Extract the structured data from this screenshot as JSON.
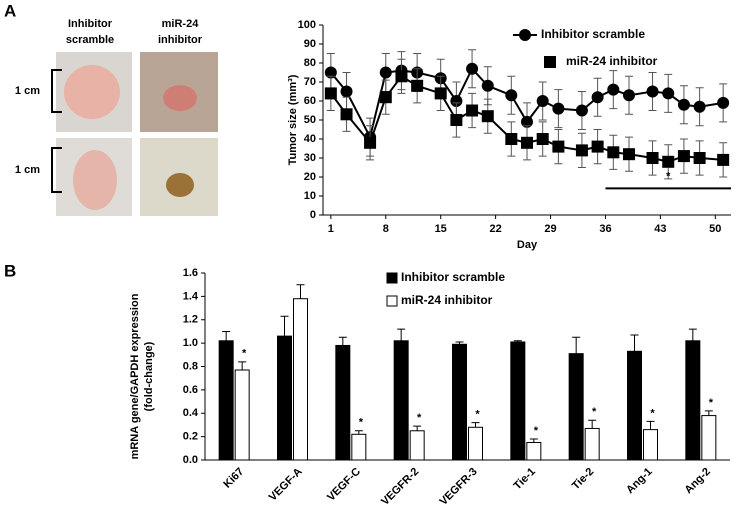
{
  "panels": {
    "a": "A",
    "b": "B"
  },
  "photos": {
    "col1": [
      "Inhibitor",
      "scramble"
    ],
    "col2": [
      "miR-24",
      "inhibitor"
    ],
    "scale1": "1 cm",
    "scale2": "1 cm"
  },
  "chart_data": [
    {
      "type": "line",
      "xlabel": "Day",
      "ylabel": "Tumor size (mm³)",
      "x": [
        1,
        3,
        6,
        8,
        10,
        12,
        15,
        17,
        19,
        21,
        24,
        26,
        28,
        30,
        33,
        35,
        37,
        39,
        42,
        44,
        46,
        48,
        51
      ],
      "series": [
        {
          "name": "Inhibitor scramble",
          "color": "#000000",
          "marker": "circle",
          "values": [
            75,
            65,
            41,
            75,
            76,
            75,
            72,
            60,
            77,
            68,
            63,
            49,
            60,
            56,
            55,
            62,
            66,
            63,
            65,
            64,
            58,
            57,
            59
          ],
          "errors": [
            10,
            10,
            10,
            10,
            10,
            10,
            10,
            10,
            10,
            10,
            10,
            10,
            10,
            10,
            10,
            10,
            10,
            10,
            10,
            10,
            10,
            10,
            10
          ]
        },
        {
          "name": "miR-24 inhibitor",
          "color": "#000000",
          "marker": "square",
          "values": [
            64,
            53,
            38,
            62,
            73,
            68,
            64,
            50,
            55,
            52,
            40,
            38,
            40,
            36,
            34,
            36,
            33,
            32,
            30,
            28,
            31,
            30,
            29
          ],
          "errors": [
            9,
            9,
            9,
            9,
            9,
            9,
            9,
            9,
            9,
            9,
            9,
            9,
            9,
            9,
            9,
            9,
            9,
            9,
            9,
            9,
            9,
            9,
            9
          ]
        }
      ],
      "xlim": [
        0,
        52
      ],
      "xticks": [
        1,
        8,
        15,
        22,
        29,
        36,
        43,
        50
      ],
      "ylim": [
        0,
        100
      ],
      "yticks": [
        0,
        10,
        20,
        30,
        40,
        50,
        60,
        70,
        80,
        90,
        100
      ],
      "significance": {
        "x": [
          36,
          52
        ],
        "y": 14,
        "label": "*"
      },
      "legend": "top-right"
    },
    {
      "type": "bar",
      "ylabel": [
        "mRNA gene/GAPDH expression",
        "(fold-change)"
      ],
      "categories": [
        "Ki67",
        "VEGF-A",
        "VEGF-C",
        "VEGFR-2",
        "VEGFR-3",
        "Tie-1",
        "Tie-2",
        "Ang-1",
        "Ang-2"
      ],
      "series": [
        {
          "name": "Inhibitor scramble",
          "color": "#000000",
          "values": [
            1.02,
            1.06,
            0.98,
            1.02,
            0.99,
            1.01,
            0.91,
            0.93,
            1.02
          ],
          "errors": [
            0.08,
            0.17,
            0.07,
            0.1,
            0.02,
            0.01,
            0.14,
            0.14,
            0.1
          ]
        },
        {
          "name": "miR-24 inhibitor",
          "color": "#ffffff",
          "values": [
            0.77,
            1.38,
            0.22,
            0.25,
            0.28,
            0.15,
            0.27,
            0.26,
            0.38
          ],
          "errors": [
            0.07,
            0.12,
            0.03,
            0.04,
            0.04,
            0.03,
            0.07,
            0.07,
            0.04
          ],
          "annotations": [
            "*",
            null,
            "*",
            "*",
            "*",
            "*",
            "*",
            "*",
            "*"
          ]
        }
      ],
      "ylim": [
        0,
        1.6
      ],
      "yticks": [
        {
          "value": 0,
          "label": "0.0"
        },
        0.2,
        0.4,
        0.6,
        0.8,
        {
          "value": 1,
          "label": "1.0"
        },
        1.2,
        1.4,
        1.6
      ],
      "legend": "top"
    }
  ]
}
